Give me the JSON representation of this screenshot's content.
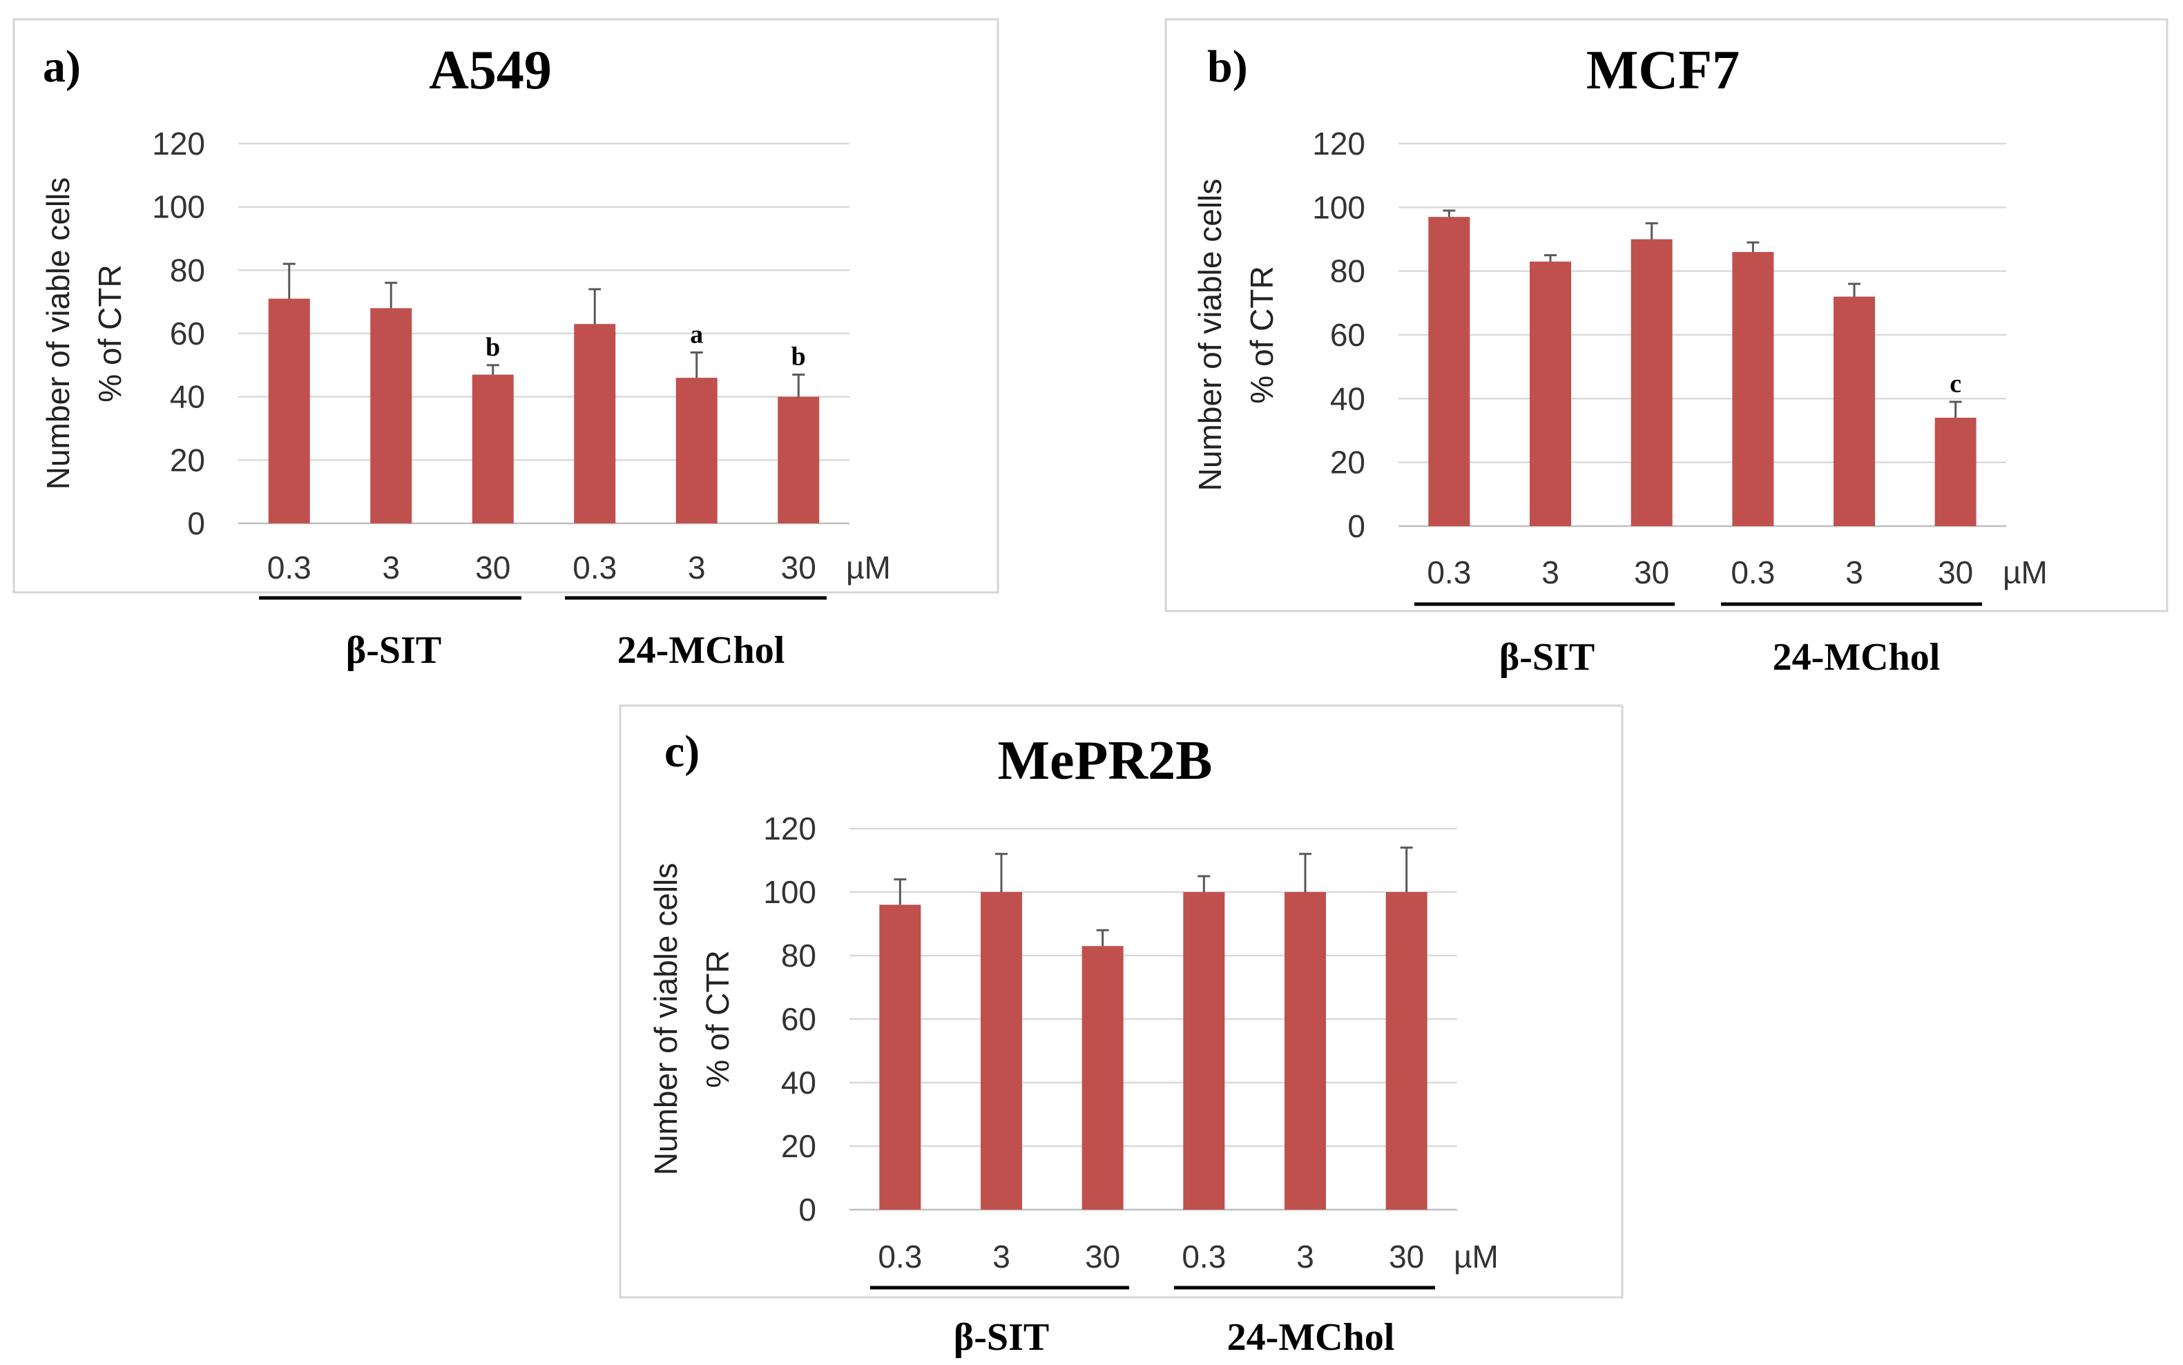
{
  "chart_data": [
    {
      "type": "bar",
      "panel": "a)",
      "title": "A549",
      "ylabel_line1": "Number of viable cells",
      "ylabel_line2": "% of CTR",
      "ylim": [
        0,
        120
      ],
      "yticks": [
        "0",
        "20",
        "40",
        "60",
        "80",
        "100",
        "120"
      ],
      "categories": [
        "0.3",
        "3",
        "30",
        "0.3",
        "3",
        "30"
      ],
      "unit": "µM",
      "groups": [
        "β-SIT",
        "24-MChol"
      ],
      "values": [
        71,
        68,
        47,
        63,
        46,
        40
      ],
      "errors": [
        11,
        8,
        3,
        11,
        8,
        7
      ],
      "significance": [
        "",
        "",
        "b",
        "",
        "a",
        "b"
      ],
      "bar_color": "#c0504d"
    },
    {
      "type": "bar",
      "panel": "b)",
      "title": "MCF7",
      "ylabel_line1": "Number of viable cells",
      "ylabel_line2": "% of CTR",
      "ylim": [
        0,
        120
      ],
      "yticks": [
        "0",
        "20",
        "40",
        "60",
        "80",
        "100",
        "120"
      ],
      "categories": [
        "0.3",
        "3",
        "30",
        "0.3",
        "3",
        "30"
      ],
      "unit": "µM",
      "groups": [
        "β-SIT",
        "24-MChol"
      ],
      "values": [
        97,
        83,
        90,
        86,
        72,
        34
      ],
      "errors": [
        2,
        2,
        5,
        3,
        4,
        5
      ],
      "significance": [
        "",
        "",
        "",
        "",
        "",
        "c"
      ],
      "bar_color": "#c0504d"
    },
    {
      "type": "bar",
      "panel": "c)",
      "title": "MePR2B",
      "ylabel_line1": "Number of viable cells",
      "ylabel_line2": "% of CTR",
      "ylim": [
        0,
        120
      ],
      "yticks": [
        "0",
        "20",
        "40",
        "60",
        "80",
        "100",
        "120"
      ],
      "categories": [
        "0.3",
        "3",
        "30",
        "0.3",
        "3",
        "30"
      ],
      "unit": "µM",
      "groups": [
        "β-SIT",
        "24-MChol"
      ],
      "values": [
        96,
        100,
        83,
        100,
        100,
        100
      ],
      "errors": [
        8,
        12,
        5,
        5,
        12,
        14
      ],
      "significance": [
        "",
        "",
        "",
        "",
        "",
        ""
      ],
      "bar_color": "#c0504d"
    }
  ]
}
